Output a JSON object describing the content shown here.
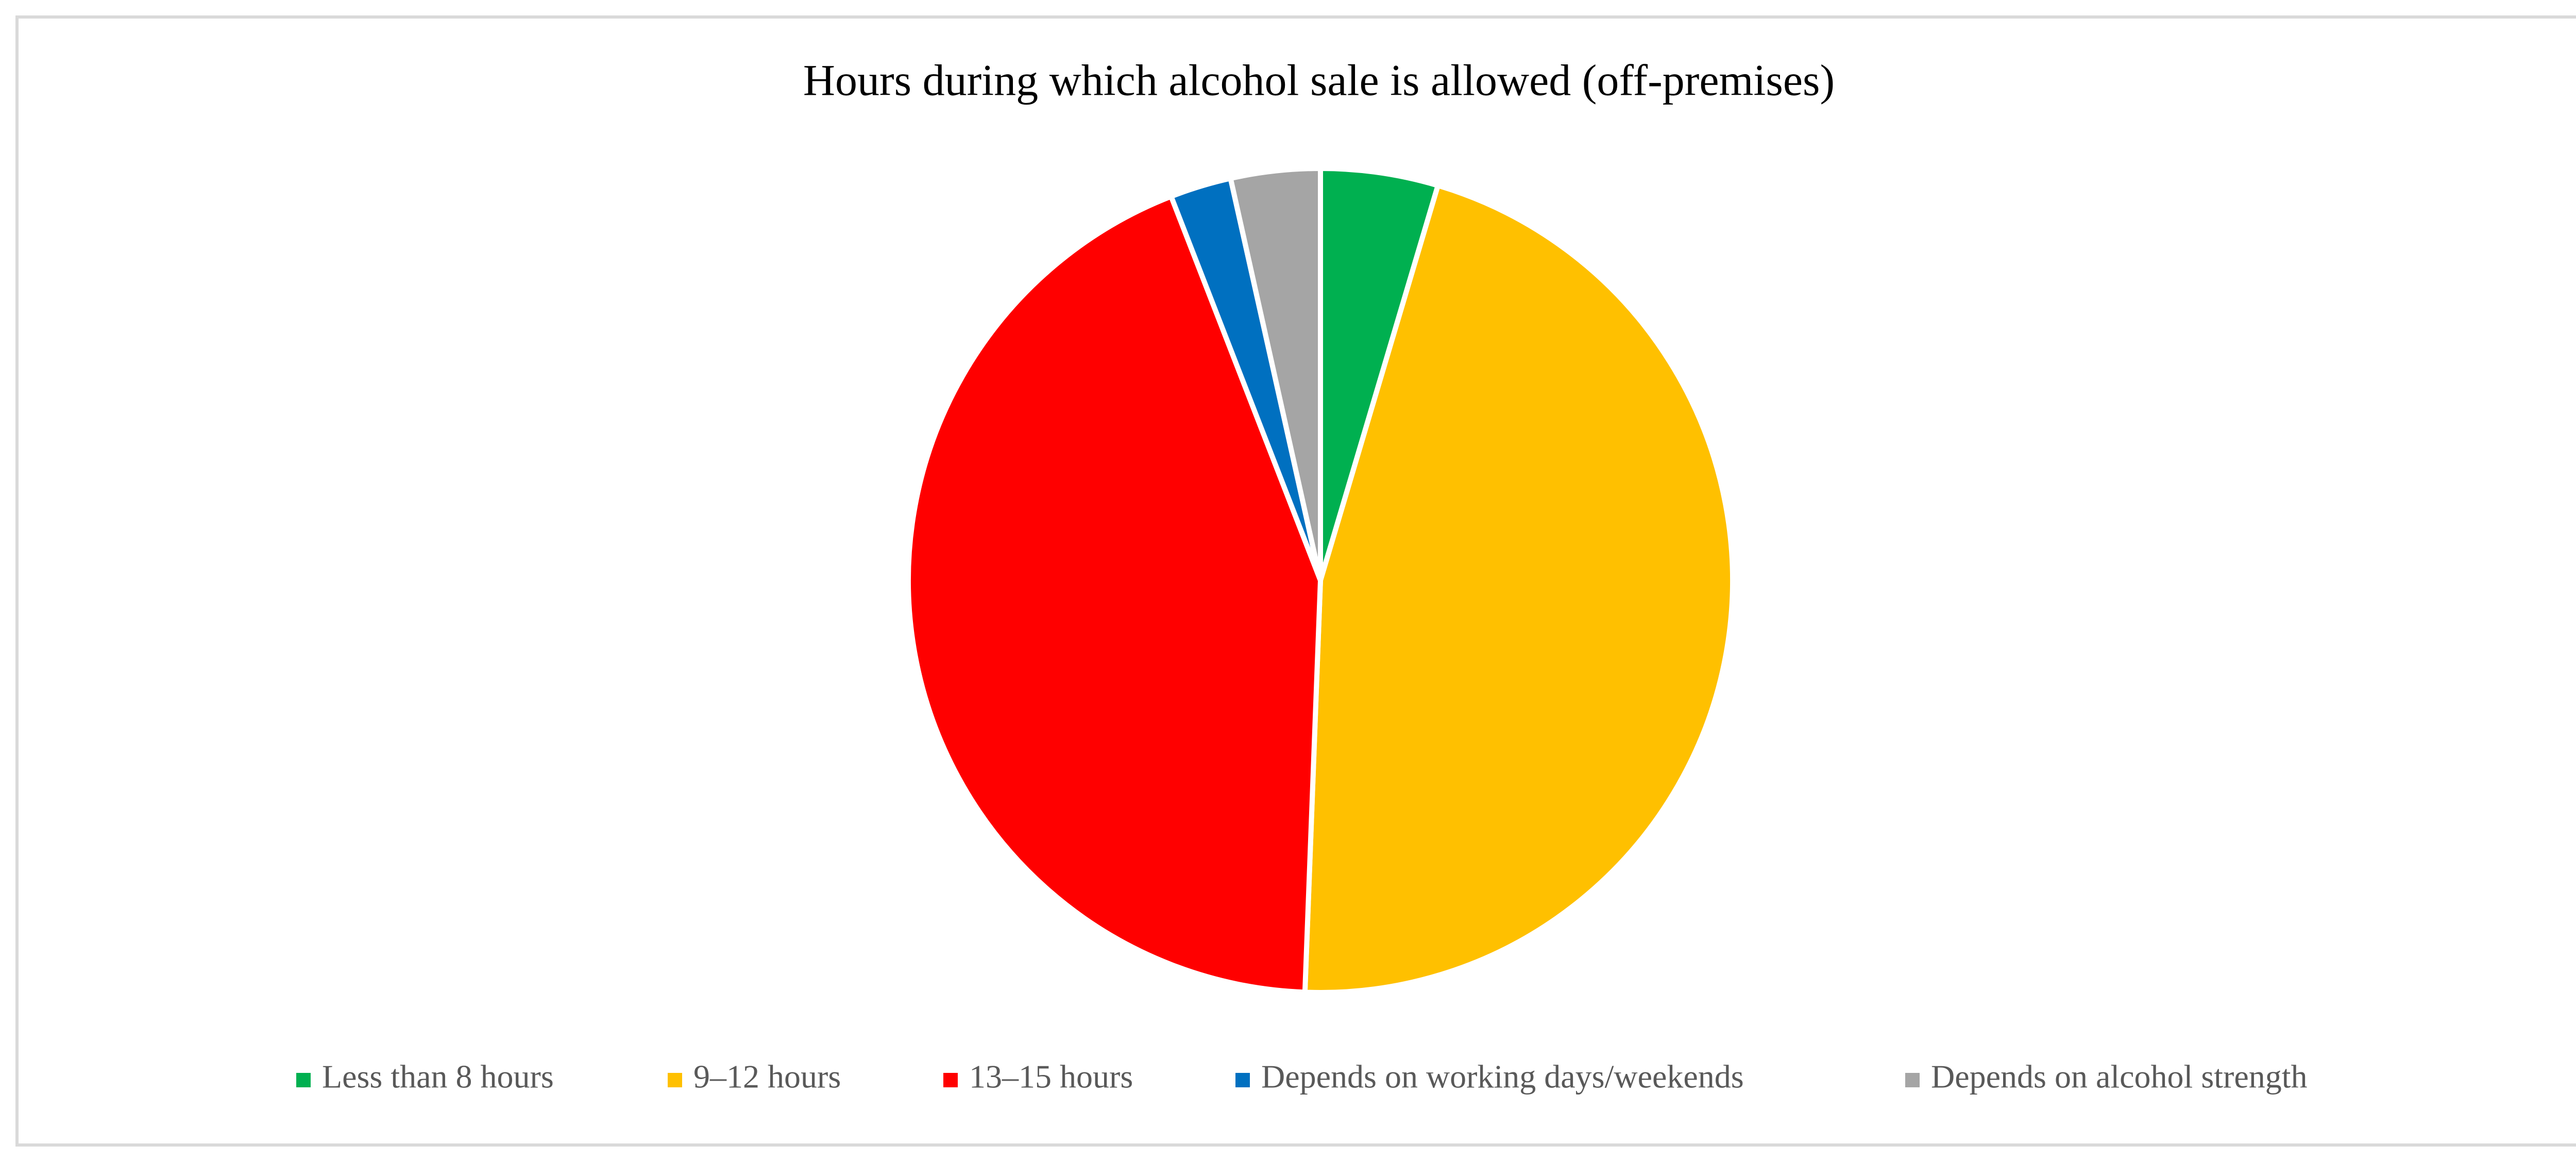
{
  "chart_data": {
    "type": "pie",
    "title": "Hours during which alcohol sale is allowed (off-premises)",
    "categories": [
      "Less than 8 hours",
      "9–12 hours",
      "13–15 hours",
      "Depends on working days/weekends",
      "Depends on alcohol strength"
    ],
    "values": [
      4.6,
      46,
      43.5,
      2.4,
      3.5
    ],
    "colors": [
      "#00b050",
      "#ffc000",
      "#ff0000",
      "#0070c0",
      "#a5a5a5"
    ],
    "legend": "bottom"
  }
}
